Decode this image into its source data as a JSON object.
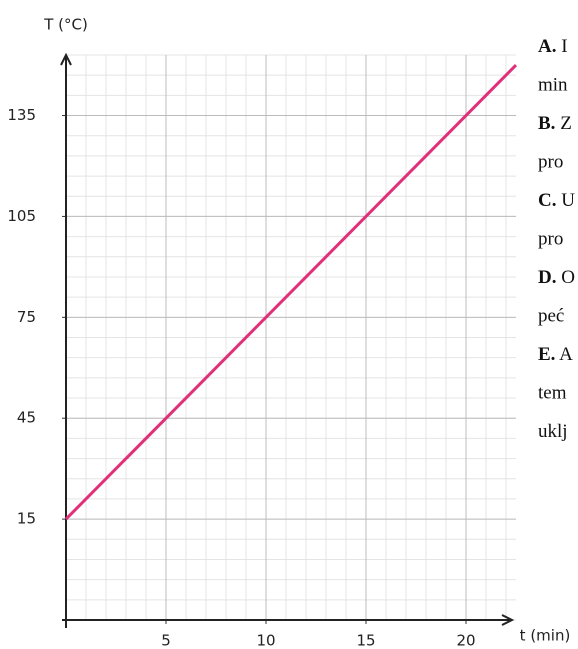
{
  "chart_data": {
    "type": "line",
    "y_label": "T (°C)",
    "x_label": "t (min)",
    "x": [
      0,
      22.5
    ],
    "series": [
      {
        "name": null,
        "color": "#e0307a",
        "values": [
          15,
          150
        ]
      }
    ],
    "xlim": [
      0,
      22.5
    ],
    "ylim": [
      -15,
      153
    ],
    "xticks": [
      5,
      10,
      15,
      20
    ],
    "yticks": [
      15,
      45,
      75,
      105,
      135
    ],
    "grid": true,
    "side_text": [
      {
        "bold": "A.",
        "text": "I"
      },
      {
        "text": "min"
      },
      {
        "bold": "B.",
        "text": "Z"
      },
      {
        "text": "pro"
      },
      {
        "bold": "C.",
        "text": "U"
      },
      {
        "text": "pro"
      },
      {
        "bold": "D.",
        "text": "O"
      },
      {
        "text": "peć"
      },
      {
        "bold": "E.",
        "text": "A"
      },
      {
        "text": "tem"
      },
      {
        "text": "uklj"
      }
    ]
  }
}
